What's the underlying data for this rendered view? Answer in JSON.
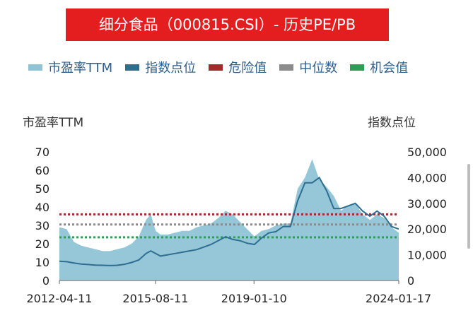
{
  "chart_data": {
    "type": "area",
    "title": "细分食品（000815.CSI）- 历史PE/PB",
    "ylabel_left": "市盈率TTM",
    "ylabel_right": "指数点位",
    "ylim_left": [
      0,
      70
    ],
    "ylim_right": [
      0,
      50000
    ],
    "yticks_left": [
      "70",
      "60",
      "50",
      "40",
      "30",
      "20",
      "10",
      "0"
    ],
    "yticks_right": [
      "50,000",
      "40,000",
      "30,000",
      "20,000",
      "10,000",
      "0"
    ],
    "xticks": [
      "2012-04-11",
      "2015-08-11",
      "2019-01-10",
      "2024-01-17"
    ],
    "legend": [
      {
        "label": "市盈率TTM",
        "color": "#8fc4d6"
      },
      {
        "label": "指数点位",
        "color": "#2e6e91"
      },
      {
        "label": "危险值",
        "color": "#a32a2a"
      },
      {
        "label": "中位数",
        "color": "#8c8c8c"
      },
      {
        "label": "机会值",
        "color": "#2e9e57"
      }
    ],
    "x_dates": [
      "2012-04",
      "2012-07",
      "2012-10",
      "2013-01",
      "2013-04",
      "2013-07",
      "2013-10",
      "2014-01",
      "2014-04",
      "2014-07",
      "2014-10",
      "2015-01",
      "2015-04",
      "2015-06",
      "2015-08",
      "2015-10",
      "2016-01",
      "2016-04",
      "2016-07",
      "2016-10",
      "2017-01",
      "2017-04",
      "2017-07",
      "2017-10",
      "2018-01",
      "2018-04",
      "2018-07",
      "2018-10",
      "2019-01",
      "2019-04",
      "2019-07",
      "2019-10",
      "2020-01",
      "2020-04",
      "2020-07",
      "2020-10",
      "2021-01",
      "2021-04",
      "2021-07",
      "2021-10",
      "2022-01",
      "2022-04",
      "2022-07",
      "2022-10",
      "2023-01",
      "2023-04",
      "2023-07",
      "2023-10",
      "2024-01"
    ],
    "series": [
      {
        "name": "市盈率TTM",
        "values": [
          29,
          28,
          21,
          19,
          18,
          17,
          16,
          16,
          17,
          18,
          20,
          24,
          33,
          36,
          27,
          25,
          25,
          26,
          27,
          27,
          29,
          30,
          31,
          34,
          38,
          36,
          32,
          28,
          24,
          27,
          28,
          30,
          31,
          31,
          50,
          56,
          66,
          55,
          51,
          46,
          38,
          41,
          42,
          36,
          33,
          36,
          34,
          29,
          26
        ]
      },
      {
        "name": "指数点位",
        "values": [
          7500,
          7300,
          6800,
          6400,
          6200,
          6000,
          5900,
          5800,
          5900,
          6300,
          7000,
          8000,
          10500,
          11500,
          10500,
          9500,
          10000,
          10500,
          11000,
          11500,
          12000,
          13000,
          14000,
          15500,
          17000,
          16000,
          15500,
          14500,
          14000,
          16500,
          18500,
          19000,
          21000,
          21000,
          31000,
          38000,
          38000,
          40000,
          35000,
          28000,
          28000,
          29000,
          30000,
          27000,
          25000,
          27000,
          25000,
          21000,
          20000
        ]
      }
    ],
    "reference_lines": [
      {
        "name": "危险值",
        "value": 36
      },
      {
        "name": "中位数",
        "value": 30.5
      },
      {
        "name": "机会值",
        "value": 23.5
      }
    ],
    "grid": false,
    "legend_position": "top"
  }
}
